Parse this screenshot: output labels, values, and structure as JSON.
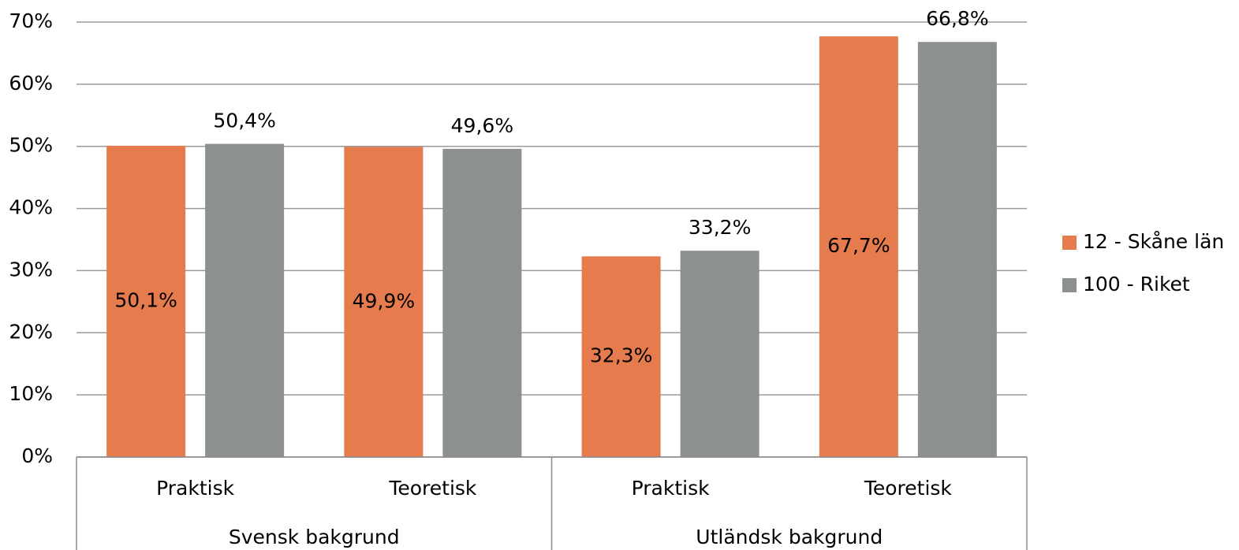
{
  "chart_data": {
    "type": "bar",
    "categories": [
      "Praktisk",
      "Teoretisk",
      "Praktisk",
      "Teoretisk"
    ],
    "category_groups": [
      {
        "name": "Svensk bakgrund",
        "count": 2
      },
      {
        "name": "Utländsk bakgrund",
        "count": 2
      }
    ],
    "series": [
      {
        "name": "12 - Skåne län",
        "color": "#E67B4E",
        "values": [
          50.1,
          49.9,
          32.3,
          67.7
        ],
        "value_labels": [
          "50,1%",
          "49,9%",
          "32,3%",
          "67,7%"
        ],
        "label_position": "center"
      },
      {
        "name": "100 - Riket",
        "color": "#8C918E",
        "values": [
          50.4,
          49.6,
          33.2,
          66.8
        ],
        "value_labels": [
          "50,4%",
          "49,6%",
          "33,2%",
          "66,8%"
        ],
        "label_position": "outside_end"
      }
    ],
    "ylim": [
      0,
      70
    ],
    "yticks": [
      {
        "value": 0,
        "label": "0%"
      },
      {
        "value": 10,
        "label": "10%"
      },
      {
        "value": 20,
        "label": "20%"
      },
      {
        "value": 30,
        "label": "30%"
      },
      {
        "value": 40,
        "label": "40%"
      },
      {
        "value": 50,
        "label": "50%"
      },
      {
        "value": 60,
        "label": "60%"
      },
      {
        "value": 70,
        "label": "70%"
      }
    ],
    "grid": true,
    "legend": "right"
  }
}
